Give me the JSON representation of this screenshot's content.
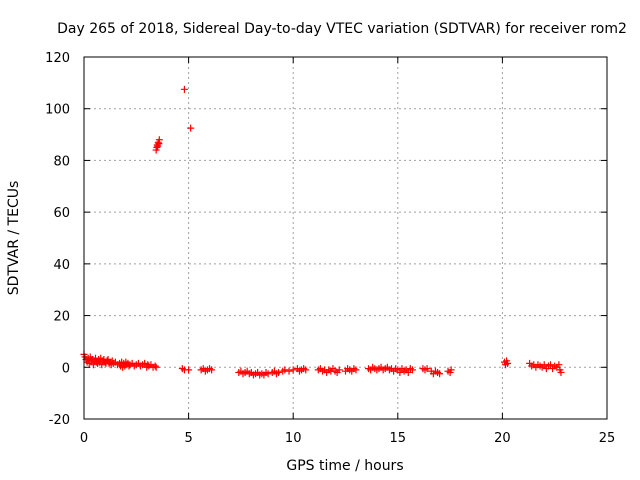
{
  "chart_data": {
    "type": "scatter",
    "title": "Day 265 of 2018, Sidereal Day-to-day VTEC variation (SDTVAR) for receiver rom2",
    "xlabel": "GPS time / hours",
    "ylabel": "SDTVAR / TECUs",
    "xlim": [
      0,
      25
    ],
    "ylim": [
      -20,
      120
    ],
    "xticks": [
      "0",
      "5",
      "10",
      "15",
      "20",
      "25"
    ],
    "yticks": [
      "-20",
      "0",
      "20",
      "40",
      "60",
      "80",
      "100",
      "120"
    ],
    "grid": true,
    "marker": "plus",
    "color": "#ff0000",
    "series": [
      {
        "name": "SDTVAR",
        "points": [
          [
            0.0,
            5.0
          ],
          [
            0.05,
            4.0
          ],
          [
            0.1,
            3.0
          ],
          [
            0.15,
            2.0
          ],
          [
            0.2,
            3.5
          ],
          [
            0.25,
            1.5
          ],
          [
            0.3,
            4.0
          ],
          [
            0.35,
            2.5
          ],
          [
            0.4,
            3.0
          ],
          [
            0.45,
            1.0
          ],
          [
            0.5,
            2.5
          ],
          [
            0.55,
            3.5
          ],
          [
            0.6,
            2.0
          ],
          [
            0.65,
            1.5
          ],
          [
            0.7,
            3.0
          ],
          [
            0.75,
            2.0
          ],
          [
            0.8,
            3.5
          ],
          [
            0.85,
            1.0
          ],
          [
            0.9,
            2.5
          ],
          [
            0.95,
            3.0
          ],
          [
            1.0,
            2.0
          ],
          [
            1.05,
            1.5
          ],
          [
            1.1,
            2.5
          ],
          [
            1.15,
            3.0
          ],
          [
            1.2,
            1.5
          ],
          [
            1.25,
            2.0
          ],
          [
            1.3,
            1.0
          ],
          [
            1.35,
            2.5
          ],
          [
            1.4,
            1.5
          ],
          [
            1.5,
            2.0
          ],
          [
            1.6,
            1.0
          ],
          [
            1.7,
            1.5
          ],
          [
            1.75,
            0.5
          ],
          [
            1.8,
            2.0
          ],
          [
            1.85,
            0.0
          ],
          [
            1.9,
            1.5
          ],
          [
            1.95,
            0.5
          ],
          [
            2.0,
            2.0
          ],
          [
            2.05,
            1.0
          ],
          [
            2.1,
            1.5
          ],
          [
            2.15,
            0.5
          ],
          [
            2.2,
            1.0
          ],
          [
            2.3,
            1.5
          ],
          [
            2.4,
            0.5
          ],
          [
            2.5,
            1.0
          ],
          [
            2.6,
            1.5
          ],
          [
            2.7,
            0.5
          ],
          [
            2.8,
            1.0
          ],
          [
            2.9,
            1.5
          ],
          [
            3.0,
            0.0
          ],
          [
            3.05,
            1.0
          ],
          [
            3.1,
            0.5
          ],
          [
            3.2,
            1.0
          ],
          [
            3.3,
            0.0
          ],
          [
            3.4,
            0.5
          ],
          [
            3.45,
            0.0
          ],
          [
            3.45,
            84.0
          ],
          [
            3.48,
            85.0
          ],
          [
            3.5,
            86.0
          ],
          [
            3.52,
            85.5
          ],
          [
            3.55,
            87.0
          ],
          [
            3.58,
            86.5
          ],
          [
            3.6,
            88.0
          ],
          [
            4.8,
            107.5
          ],
          [
            5.1,
            92.5
          ],
          [
            4.7,
            -0.5
          ],
          [
            4.8,
            -1.0
          ],
          [
            5.0,
            -1.0
          ],
          [
            5.6,
            -1.0
          ],
          [
            5.7,
            -0.5
          ],
          [
            5.8,
            -1.5
          ],
          [
            5.9,
            -1.0
          ],
          [
            6.0,
            -0.5
          ],
          [
            6.1,
            -1.0
          ],
          [
            7.4,
            -2.0
          ],
          [
            7.5,
            -1.5
          ],
          [
            7.6,
            -2.5
          ],
          [
            7.7,
            -2.0
          ],
          [
            7.8,
            -1.5
          ],
          [
            7.9,
            -2.5
          ],
          [
            8.0,
            -2.0
          ],
          [
            8.1,
            -3.0
          ],
          [
            8.2,
            -2.5
          ],
          [
            8.3,
            -2.0
          ],
          [
            8.4,
            -3.0
          ],
          [
            8.5,
            -2.5
          ],
          [
            8.6,
            -3.0
          ],
          [
            8.7,
            -2.0
          ],
          [
            8.8,
            -2.5
          ],
          [
            9.0,
            -2.0
          ],
          [
            9.1,
            -1.5
          ],
          [
            9.2,
            -2.5
          ],
          [
            9.3,
            -2.0
          ],
          [
            9.5,
            -1.5
          ],
          [
            9.6,
            -1.0
          ],
          [
            9.8,
            -1.5
          ],
          [
            10.0,
            -1.0
          ],
          [
            10.2,
            -0.5
          ],
          [
            10.3,
            -1.5
          ],
          [
            10.4,
            -1.0
          ],
          [
            10.5,
            -0.5
          ],
          [
            10.6,
            -1.0
          ],
          [
            11.2,
            -1.0
          ],
          [
            11.3,
            -0.5
          ],
          [
            11.4,
            -1.5
          ],
          [
            11.5,
            -1.0
          ],
          [
            11.6,
            -2.0
          ],
          [
            11.7,
            -1.0
          ],
          [
            11.8,
            -1.5
          ],
          [
            11.9,
            -0.5
          ],
          [
            12.0,
            -1.5
          ],
          [
            12.1,
            -2.0
          ],
          [
            12.2,
            -1.0
          ],
          [
            12.5,
            -1.5
          ],
          [
            12.6,
            -0.5
          ],
          [
            12.7,
            -1.0
          ],
          [
            12.8,
            -1.5
          ],
          [
            12.9,
            -0.5
          ],
          [
            13.0,
            -1.0
          ],
          [
            13.6,
            -0.5
          ],
          [
            13.7,
            -1.0
          ],
          [
            13.8,
            0.0
          ],
          [
            13.9,
            -0.5
          ],
          [
            14.0,
            -1.0
          ],
          [
            14.1,
            -0.5
          ],
          [
            14.2,
            0.0
          ],
          [
            14.3,
            -1.0
          ],
          [
            14.4,
            -0.5
          ],
          [
            14.5,
            0.0
          ],
          [
            14.6,
            -1.0
          ],
          [
            14.7,
            -0.5
          ],
          [
            14.8,
            -1.5
          ],
          [
            14.9,
            -0.5
          ],
          [
            15.0,
            -1.0
          ],
          [
            15.1,
            -2.0
          ],
          [
            15.2,
            -0.5
          ],
          [
            15.3,
            -1.5
          ],
          [
            15.4,
            -1.0
          ],
          [
            15.5,
            -2.0
          ],
          [
            15.6,
            -0.5
          ],
          [
            15.7,
            -1.0
          ],
          [
            16.2,
            -0.5
          ],
          [
            16.3,
            -1.0
          ],
          [
            16.4,
            -0.5
          ],
          [
            16.6,
            -1.5
          ],
          [
            16.7,
            -2.5
          ],
          [
            16.8,
            -1.5
          ],
          [
            16.9,
            -2.0
          ],
          [
            17.0,
            -2.5
          ],
          [
            17.4,
            -1.5
          ],
          [
            17.5,
            -2.0
          ],
          [
            17.55,
            -1.0
          ],
          [
            20.1,
            2.0
          ],
          [
            20.15,
            1.0
          ],
          [
            20.2,
            2.5
          ],
          [
            20.25,
            1.5
          ],
          [
            21.3,
            1.5
          ],
          [
            21.4,
            0.5
          ],
          [
            21.5,
            1.0
          ],
          [
            21.6,
            0.0
          ],
          [
            21.7,
            1.0
          ],
          [
            21.8,
            0.5
          ],
          [
            21.9,
            0.0
          ],
          [
            22.0,
            1.0
          ],
          [
            22.1,
            -0.5
          ],
          [
            22.2,
            0.5
          ],
          [
            22.3,
            1.0
          ],
          [
            22.4,
            -0.5
          ],
          [
            22.5,
            0.5
          ],
          [
            22.6,
            0.0
          ],
          [
            22.7,
            1.0
          ],
          [
            22.75,
            -1.0
          ],
          [
            22.8,
            -2.0
          ]
        ]
      }
    ]
  }
}
